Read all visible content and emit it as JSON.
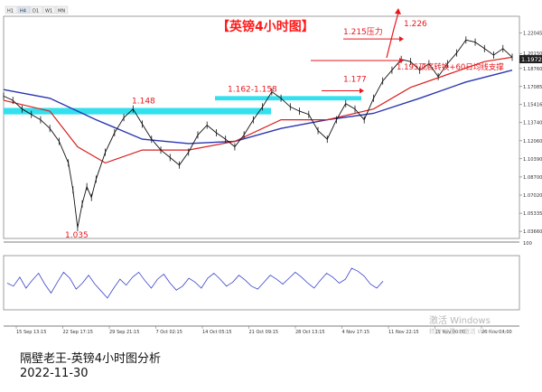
{
  "toolbar": {
    "tabs": [
      "H1",
      "H4",
      "D1",
      "W1",
      "MN"
    ],
    "active_tab": "H4"
  },
  "chart_data": [
    {
      "type": "line",
      "title": "【英镑4小时图】",
      "symbol_readout": "1.19725",
      "ylim": [
        1.03,
        1.236
      ],
      "y_ticks": [
        1.22045,
        1.2015,
        1.1876,
        1.17085,
        1.15416,
        1.1374,
        1.1206,
        1.1039,
        1.087,
        1.0702,
        1.05335,
        1.0366
      ],
      "price_series": [
        {
          "t": 0,
          "v": 1.162
        },
        {
          "t": 2,
          "v": 1.158
        },
        {
          "t": 4,
          "v": 1.15
        },
        {
          "t": 6,
          "v": 1.145
        },
        {
          "t": 8,
          "v": 1.14
        },
        {
          "t": 10,
          "v": 1.132
        },
        {
          "t": 12,
          "v": 1.12
        },
        {
          "t": 14,
          "v": 1.1
        },
        {
          "t": 15,
          "v": 1.075
        },
        {
          "t": 16,
          "v": 1.04
        },
        {
          "t": 17,
          "v": 1.062
        },
        {
          "t": 18,
          "v": 1.078
        },
        {
          "t": 19,
          "v": 1.068
        },
        {
          "t": 20,
          "v": 1.085
        },
        {
          "t": 22,
          "v": 1.11
        },
        {
          "t": 24,
          "v": 1.128
        },
        {
          "t": 26,
          "v": 1.142
        },
        {
          "t": 28,
          "v": 1.15
        },
        {
          "t": 30,
          "v": 1.136
        },
        {
          "t": 32,
          "v": 1.122
        },
        {
          "t": 34,
          "v": 1.112
        },
        {
          "t": 36,
          "v": 1.105
        },
        {
          "t": 38,
          "v": 1.098
        },
        {
          "t": 40,
          "v": 1.11
        },
        {
          "t": 42,
          "v": 1.126
        },
        {
          "t": 44,
          "v": 1.135
        },
        {
          "t": 46,
          "v": 1.128
        },
        {
          "t": 48,
          "v": 1.122
        },
        {
          "t": 50,
          "v": 1.115
        },
        {
          "t": 52,
          "v": 1.126
        },
        {
          "t": 54,
          "v": 1.14
        },
        {
          "t": 56,
          "v": 1.152
        },
        {
          "t": 58,
          "v": 1.166
        },
        {
          "t": 60,
          "v": 1.16
        },
        {
          "t": 62,
          "v": 1.152
        },
        {
          "t": 64,
          "v": 1.148
        },
        {
          "t": 66,
          "v": 1.145
        },
        {
          "t": 68,
          "v": 1.13
        },
        {
          "t": 70,
          "v": 1.122
        },
        {
          "t": 72,
          "v": 1.14
        },
        {
          "t": 74,
          "v": 1.155
        },
        {
          "t": 76,
          "v": 1.15
        },
        {
          "t": 78,
          "v": 1.14
        },
        {
          "t": 80,
          "v": 1.16
        },
        {
          "t": 82,
          "v": 1.176
        },
        {
          "t": 84,
          "v": 1.186
        },
        {
          "t": 86,
          "v": 1.196
        },
        {
          "t": 88,
          "v": 1.194
        },
        {
          "t": 90,
          "v": 1.186
        },
        {
          "t": 92,
          "v": 1.192
        },
        {
          "t": 94,
          "v": 1.18
        },
        {
          "t": 96,
          "v": 1.192
        },
        {
          "t": 98,
          "v": 1.202
        },
        {
          "t": 100,
          "v": 1.214
        },
        {
          "t": 102,
          "v": 1.212
        },
        {
          "t": 104,
          "v": 1.206
        },
        {
          "t": 106,
          "v": 1.2
        },
        {
          "t": 108,
          "v": 1.206
        },
        {
          "t": 110,
          "v": 1.198
        }
      ],
      "ma_short": [
        {
          "t": 0,
          "v": 1.158
        },
        {
          "t": 10,
          "v": 1.148
        },
        {
          "t": 16,
          "v": 1.115
        },
        {
          "t": 22,
          "v": 1.1
        },
        {
          "t": 30,
          "v": 1.112
        },
        {
          "t": 40,
          "v": 1.112
        },
        {
          "t": 50,
          "v": 1.12
        },
        {
          "t": 60,
          "v": 1.14
        },
        {
          "t": 70,
          "v": 1.14
        },
        {
          "t": 80,
          "v": 1.15
        },
        {
          "t": 88,
          "v": 1.17
        },
        {
          "t": 96,
          "v": 1.182
        },
        {
          "t": 104,
          "v": 1.194
        },
        {
          "t": 110,
          "v": 1.198
        }
      ],
      "ma_long": [
        {
          "t": 0,
          "v": 1.168
        },
        {
          "t": 10,
          "v": 1.16
        },
        {
          "t": 20,
          "v": 1.14
        },
        {
          "t": 30,
          "v": 1.122
        },
        {
          "t": 40,
          "v": 1.118
        },
        {
          "t": 50,
          "v": 1.12
        },
        {
          "t": 60,
          "v": 1.132
        },
        {
          "t": 70,
          "v": 1.14
        },
        {
          "t": 80,
          "v": 1.146
        },
        {
          "t": 90,
          "v": 1.16
        },
        {
          "t": 100,
          "v": 1.175
        },
        {
          "t": 110,
          "v": 1.186
        }
      ],
      "support_zones": [
        {
          "label": "1.148",
          "low": 1.145,
          "high": 1.151
        },
        {
          "label": "1.162-1.158",
          "low": 1.158,
          "high": 1.162
        }
      ],
      "annotations": [
        {
          "text": "1.215压力",
          "value": 1.215
        },
        {
          "text": "1.195顶底转换+60日均线支撑",
          "value": 1.195
        },
        {
          "text": "1.177",
          "value": 1.177
        },
        {
          "text": "1.226",
          "value": 1.226
        },
        {
          "text": "1.035",
          "value": 1.035
        }
      ],
      "x_labels": [
        "15 Sep 13:15",
        "22 Sep 17:15",
        "29 Sep 21:15",
        "7 Oct 02:15",
        "14 Oct 05:15",
        "21 Oct 09:15",
        "28 Oct 13:15",
        "4 Nov 17:15",
        "11 Nov 22:15",
        "19 Nov 00:00",
        "26 Nov 04:00"
      ]
    },
    {
      "type": "line",
      "ylim": [
        0,
        100
      ],
      "y_ticks": [
        100
      ],
      "series": [
        {
          "values": [
            50,
            44,
            62,
            40,
            56,
            70,
            48,
            30,
            52,
            72,
            60,
            38,
            50,
            66,
            48,
            34,
            20,
            40,
            58,
            46,
            62,
            72,
            55,
            40,
            58,
            68,
            50,
            36,
            44,
            60,
            52,
            40,
            60,
            70,
            58,
            44,
            52,
            66,
            56,
            44,
            38,
            52,
            66,
            58,
            48,
            60,
            72,
            62,
            50,
            40,
            56,
            70,
            62,
            50,
            58,
            80,
            74,
            64,
            48,
            40,
            54
          ]
        }
      ]
    }
  ],
  "annotation_colors": {
    "title": "#ff1a1a",
    "annotation": "#e8161c",
    "zone": "#33e0ee",
    "ma_short": "#d82020",
    "ma_long": "#2a36b0",
    "price": "#111111",
    "oscillator": "#3a43c9"
  },
  "footer": {
    "title": "隔壁老王-英镑4小时图分析",
    "date": "2022-11-30"
  },
  "watermark": {
    "line1": "激活 Windows",
    "line2": "转到\"设置\"以激活 Windows。"
  }
}
